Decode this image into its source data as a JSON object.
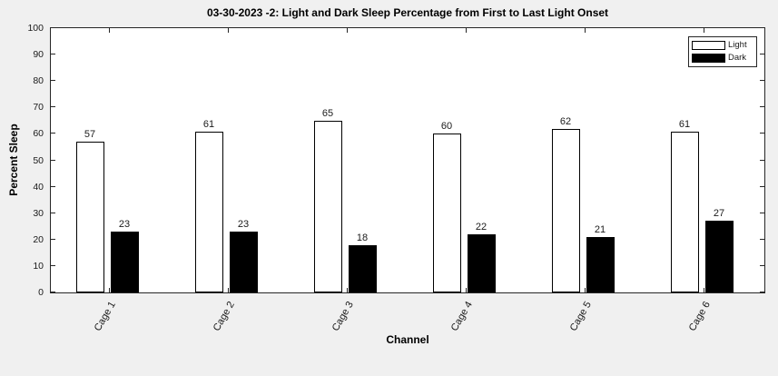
{
  "figure": {
    "background_color": "#f0f0f0",
    "plot_background_color": "#ffffff",
    "axis_color": "#262626",
    "text_color": "#1a1a1a"
  },
  "chart_data": {
    "type": "bar",
    "title": "03-30-2023 -2: Light and Dark Sleep Percentage from First to Last Light Onset",
    "xlabel": "Channel",
    "ylabel": "Percent Sleep",
    "ylim": [
      0,
      100
    ],
    "yticks": [
      0,
      10,
      20,
      30,
      40,
      50,
      60,
      70,
      80,
      90,
      100
    ],
    "grid": false,
    "bar_labels": true,
    "legend_position": "top-right",
    "categories": [
      "Cage 1",
      "Cage 2",
      "Cage 3",
      "Cage 4",
      "Cage 5",
      "Cage 6"
    ],
    "series": [
      {
        "name": "Light",
        "color": "#ffffff",
        "border_color": "#000000",
        "values": [
          57,
          61,
          65,
          60,
          62,
          61
        ]
      },
      {
        "name": "Dark",
        "color": "#000000",
        "border_color": "#000000",
        "values": [
          23,
          23,
          18,
          22,
          21,
          27
        ]
      }
    ]
  }
}
